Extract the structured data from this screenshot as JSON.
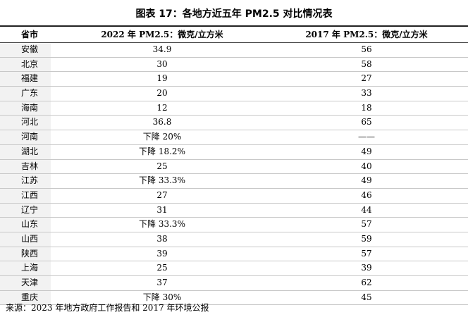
{
  "title": "图表 17：各地方近五年 PM2.5 对比情况表",
  "table": {
    "header": [
      "省市",
      "2022 年 PM2.5：微克/立方米",
      "2017 年 PM2.5：微克/立方米"
    ],
    "rows": [
      [
        "安徽",
        "34.9",
        "56"
      ],
      [
        "北京",
        "30",
        "58"
      ],
      [
        "福建",
        "19",
        "27"
      ],
      [
        "广东",
        "20",
        "33"
      ],
      [
        "海南",
        "12",
        "18"
      ],
      [
        "河北",
        "36.8",
        "65"
      ],
      [
        "河南",
        "下降 20%",
        "——"
      ],
      [
        "湖北",
        "下降 18.2%",
        "49"
      ],
      [
        "吉林",
        "25",
        "40"
      ],
      [
        "江苏",
        "下降 33.3%",
        "49"
      ],
      [
        "江西",
        "27",
        "46"
      ],
      [
        "辽宁",
        "31",
        "44"
      ],
      [
        "山东",
        "下降 33.3%",
        "57"
      ],
      [
        "山西",
        "38",
        "59"
      ],
      [
        "陕西",
        "39",
        "57"
      ],
      [
        "上海",
        "25",
        "39"
      ],
      [
        "天津",
        "37",
        "62"
      ],
      [
        "重庆",
        "下降 30%",
        "45"
      ]
    ]
  },
  "source": "来源：2023 年地方政府工作报告和 2017 年环境公报"
}
